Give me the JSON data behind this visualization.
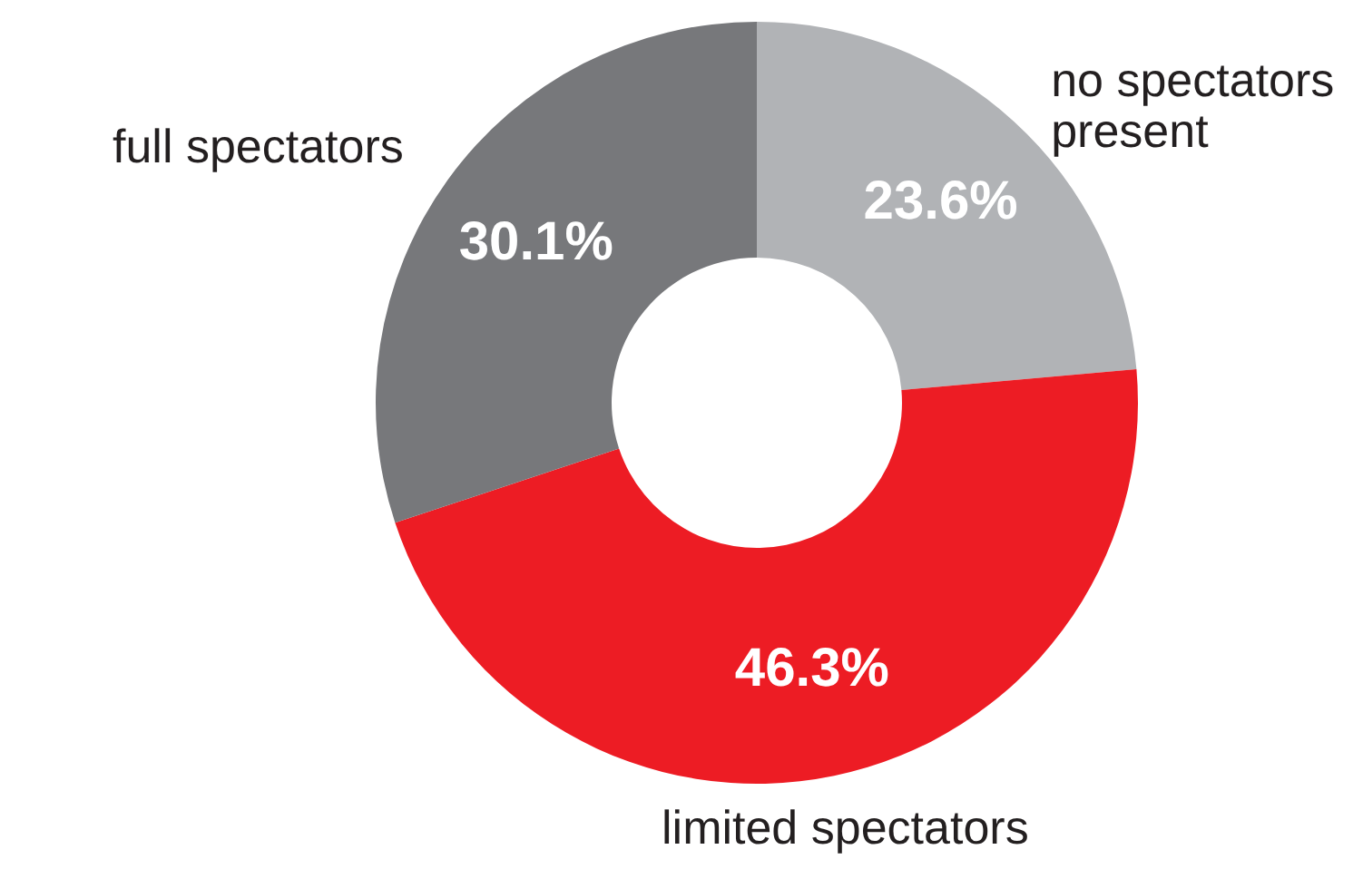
{
  "chart_data": {
    "type": "donut",
    "categories": [
      "no spectators\npresent",
      "limited spectators",
      "full spectators"
    ],
    "values": [
      23.6,
      46.3,
      30.1
    ],
    "colors": [
      "#b1b3b6",
      "#ed1c24",
      "#77787b"
    ],
    "value_labels": [
      "23.6%",
      "46.3%",
      "30.1%"
    ],
    "legend": false
  }
}
